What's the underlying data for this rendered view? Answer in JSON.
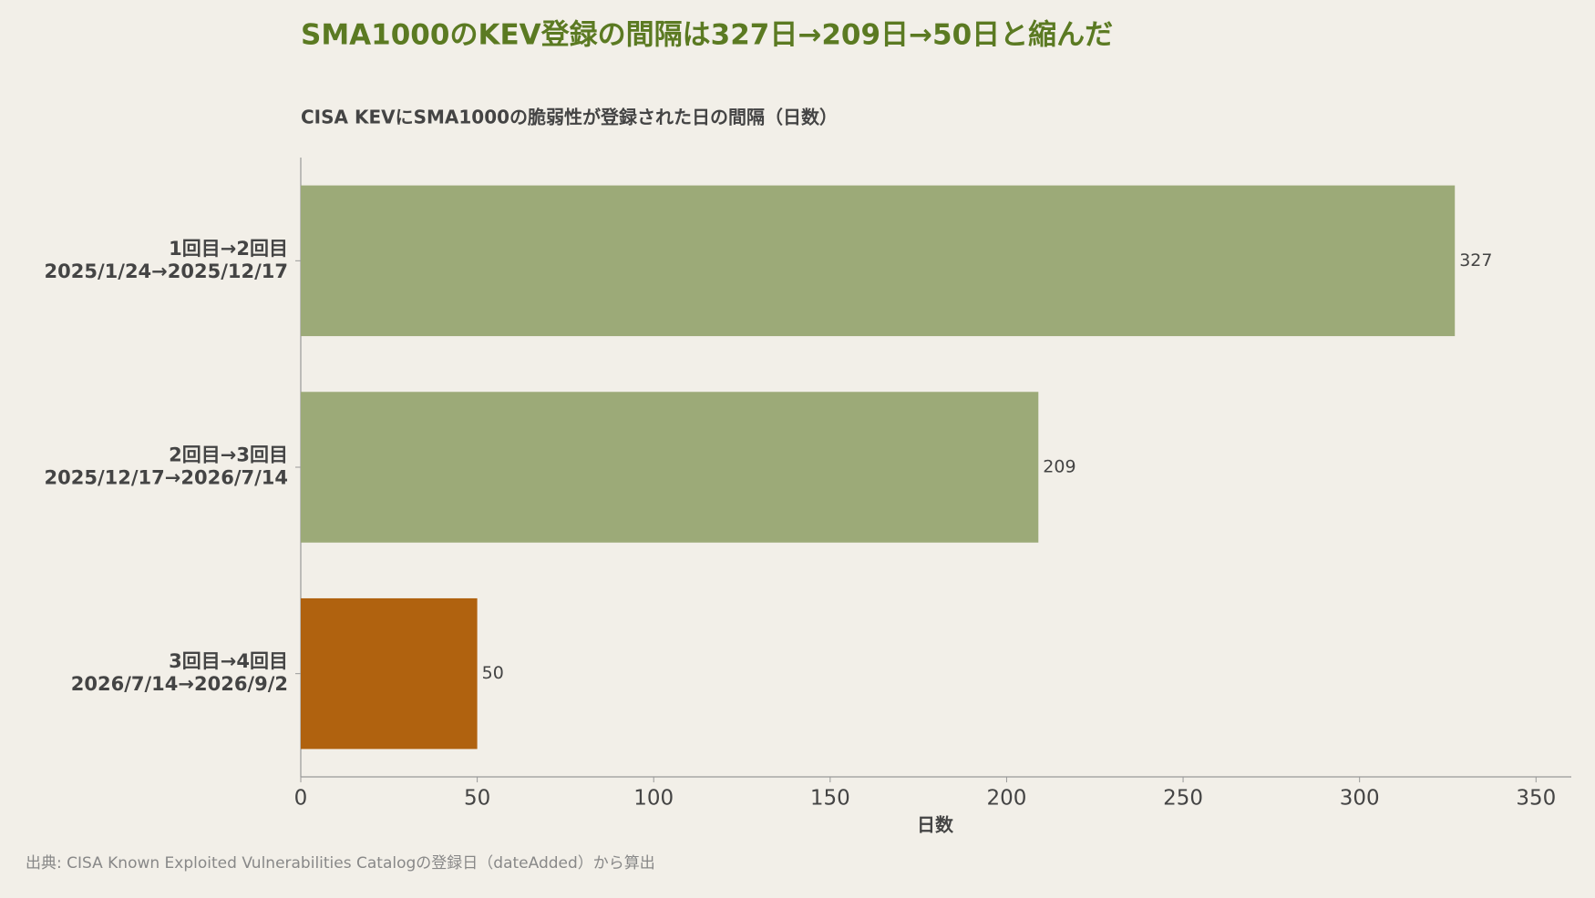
{
  "chart_data": {
    "type": "bar",
    "orientation": "horizontal",
    "title": "SMA1000のKEV登録の間隔は327日→209日→50日と縮んだ",
    "subtitle": "CISA KEVにSMA1000の脆弱性が登録された日の間隔（日数）",
    "x_label": "日数",
    "source": "出典: CISA Known Exploited Vulnerabilities Catalogの登録日（dateAdded）から算出",
    "categories": [
      [
        "1回目→2回目",
        "2025/1/24→2025/12/17"
      ],
      [
        "2回目→3回目",
        "2025/12/17→2026/7/14"
      ],
      [
        "3回目→4回目",
        "2026/7/14→2026/9/2"
      ]
    ],
    "values": [
      327,
      209,
      50
    ],
    "colors": [
      "#9caa78",
      "#9caa78",
      "#b0620f"
    ],
    "xlim": [
      0,
      360
    ],
    "xticks": [
      0,
      50,
      100,
      150,
      200,
      250,
      300,
      350
    ],
    "grid": false
  }
}
